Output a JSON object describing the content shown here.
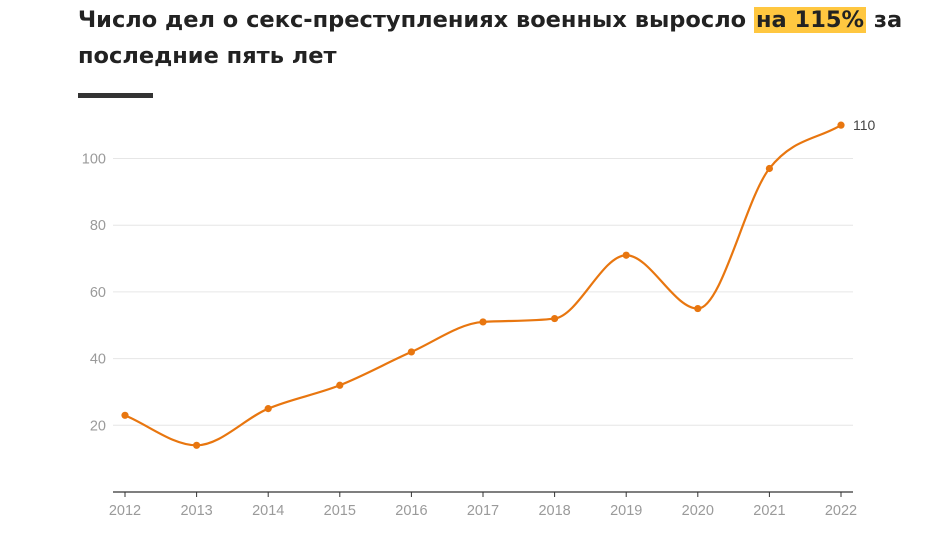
{
  "title": {
    "before": "Число дел о секс-преступлениях военных выросло ",
    "highlight": "на 115%",
    "after": " за последние пять лет"
  },
  "colors": {
    "line": "#e8760f",
    "highlight": "#ffc740",
    "grid": "#e6e6e6",
    "axis": "#333333"
  },
  "chart_data": {
    "type": "line",
    "title": "Число дел о секс-преступлениях военных выросло на 115% за последние пять лет",
    "x": [
      "2012",
      "2013",
      "2014",
      "2015",
      "2016",
      "2017",
      "2018",
      "2019",
      "2020",
      "2021",
      "2022"
    ],
    "series": [
      {
        "values": [
          23,
          14,
          25,
          32,
          42,
          51,
          52,
          71,
          55,
          97,
          110
        ]
      }
    ],
    "y_ticks": [
      20,
      40,
      60,
      80,
      100
    ],
    "ylim": [
      0,
      110
    ],
    "end_label": "110",
    "grid": true,
    "xlabel": "",
    "ylabel": ""
  }
}
